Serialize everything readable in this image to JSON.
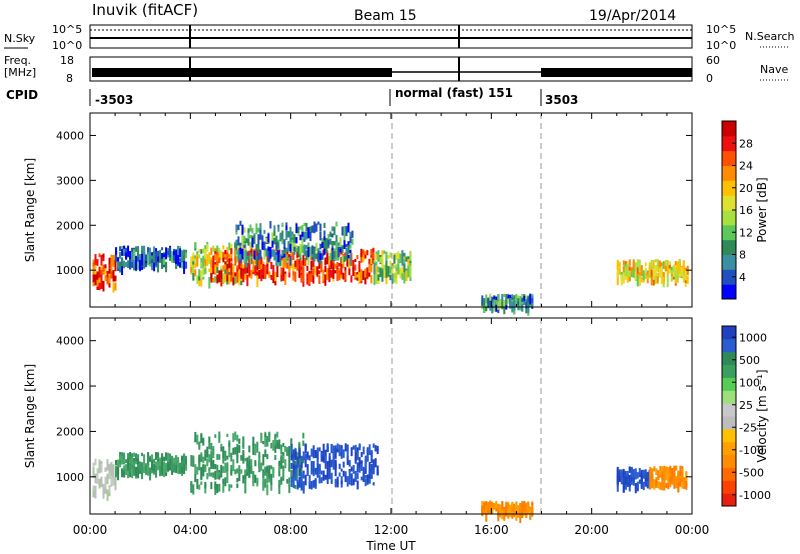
{
  "header": {
    "station": "Inuvik (fitACF)",
    "beam": "Beam 15",
    "date": "19/Apr/2014"
  },
  "noise_panel": {
    "left_label": "N.Sky",
    "right_label": "N.Search",
    "left_top": "10^5",
    "left_bottom": "10^0",
    "right_top": "10^5",
    "right_bottom": "10^0"
  },
  "freq_panel": {
    "left_label_line1": "Freq.",
    "left_label_line2": "[MHz]",
    "right_label": "Nave",
    "left_top": "18",
    "left_bottom": "8",
    "right_top": "60",
    "right_bottom": "0"
  },
  "cpid_panel": {
    "label": "CPID",
    "segments": [
      {
        "start_h": 0,
        "end_h": 12,
        "label": "-3503"
      },
      {
        "start_h": 12,
        "end_h": 18,
        "label": "normal (fast) 151"
      },
      {
        "start_h": 18,
        "end_h": 24,
        "label": "3503"
      }
    ]
  },
  "chart_data": [
    {
      "type": "heatmap",
      "name": "power",
      "ylabel": "Slant Range [km]",
      "colorbar_label": "Power [dB]",
      "xlim": [
        0,
        24
      ],
      "ylim": [
        180,
        4500
      ],
      "yticks": [
        1000,
        2000,
        3000,
        4000
      ],
      "colorbar_ticks": [
        "4",
        "8",
        "12",
        "16",
        "20",
        "24",
        "28"
      ],
      "colorbar_colors": [
        "#0000ff",
        "#2050c0",
        "#3a8fa0",
        "#2e8b57",
        "#5cc85c",
        "#a8e040",
        "#e0e030",
        "#ffc000",
        "#ff8c00",
        "#ff5000",
        "#ee1010",
        "#cc0000"
      ],
      "blobs": [
        {
          "t0": 0.1,
          "t1": 1.0,
          "r0": 700,
          "r1": 1400,
          "lvl": 10
        },
        {
          "t0": 1.0,
          "t1": 3.8,
          "r0": 1150,
          "r1": 1550,
          "lvl": 2
        },
        {
          "t0": 4.0,
          "t1": 6.2,
          "r0": 820,
          "r1": 1650,
          "lvl": 6
        },
        {
          "t0": 4.8,
          "t1": 11.3,
          "r0": 880,
          "r1": 1500,
          "lvl": 10
        },
        {
          "t0": 5.8,
          "t1": 10.5,
          "r0": 1300,
          "r1": 2100,
          "lvl": 3
        },
        {
          "t0": 11.3,
          "t1": 12.8,
          "r0": 880,
          "r1": 1450,
          "lvl": 5
        },
        {
          "t0": 15.6,
          "t1": 17.6,
          "r0": 240,
          "r1": 480,
          "lvl": 3
        },
        {
          "t0": 21.0,
          "t1": 23.8,
          "r0": 850,
          "r1": 1250,
          "lvl": 7
        }
      ]
    },
    {
      "type": "heatmap",
      "name": "velocity",
      "ylabel": "Slant Range [km]",
      "colorbar_label": "Velocity [m s⁻¹]",
      "xlim": [
        0,
        24
      ],
      "ylim": [
        180,
        4500
      ],
      "yticks": [
        1000,
        2000,
        3000,
        4000
      ],
      "xticks": [
        "00:00",
        "04:00",
        "08:00",
        "12:00",
        "16:00",
        "20:00",
        "00:00"
      ],
      "xlabel": "Time UT",
      "colorbar_ticks": [
        "1000",
        "500",
        "100",
        "25",
        "-25",
        "-100",
        "-500",
        "-1000"
      ],
      "colorbar_colors": [
        "#2040c0",
        "#2a5ed0",
        "#2e8b57",
        "#3aa060",
        "#55cc55",
        "#9be07a",
        "#c8c8c8",
        "#bdbdbd",
        "#ffc000",
        "#ffa000",
        "#ff8c00",
        "#ff6a00",
        "#ff4000",
        "#e82010"
      ],
      "blobs": [
        {
          "t0": 0.1,
          "t1": 1.0,
          "r0": 700,
          "r1": 1400,
          "vel": "grey"
        },
        {
          "t0": 1.0,
          "t1": 3.8,
          "r0": 1150,
          "r1": 1550,
          "vel": "green"
        },
        {
          "t0": 4.0,
          "t1": 8.5,
          "r0": 820,
          "r1": 2000,
          "vel": "green"
        },
        {
          "t0": 8.0,
          "t1": 11.5,
          "r0": 880,
          "r1": 1750,
          "vel": "blue"
        },
        {
          "t0": 21.0,
          "t1": 22.3,
          "r0": 850,
          "r1": 1250,
          "vel": "blue"
        },
        {
          "t0": 22.3,
          "t1": 23.8,
          "r0": 850,
          "r1": 1250,
          "vel": "orange"
        },
        {
          "t0": 15.6,
          "t1": 17.6,
          "r0": 240,
          "r1": 480,
          "vel": "orange"
        }
      ]
    }
  ]
}
